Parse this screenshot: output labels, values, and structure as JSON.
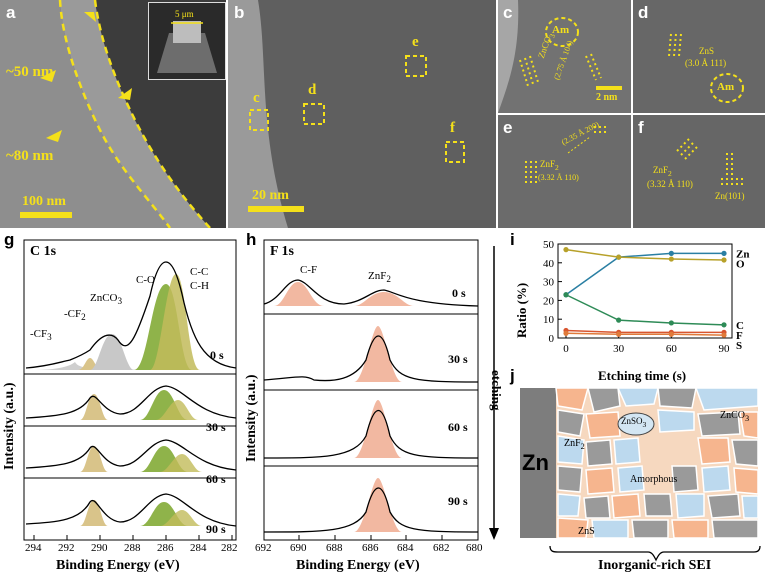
{
  "colors": {
    "yellow": "#f4e01a",
    "tem_dark": "#3a3a3a",
    "teal": "#2a7fa3",
    "olive": "#b7a12a",
    "orange_red": "#d8552f",
    "f_peak": "#f2b8a1"
  },
  "panel_a": {
    "label": "a",
    "annot_top": "~50 nm",
    "annot_bottom": "~80 nm",
    "inset_scale": "5 μm",
    "scalebar": "100 nm"
  },
  "panel_b": {
    "label": "b",
    "box_c": "c",
    "box_d": "d",
    "box_e": "e",
    "box_f": "f",
    "scalebar": "20 nm"
  },
  "panel_c": {
    "label": "c",
    "am": "Am",
    "znco3_1": "ZnCO",
    "znco3_2": "3",
    "lattice": "(2.75 Å 104)",
    "scalebar": "2 nm"
  },
  "panel_d": {
    "label": "d",
    "zns": "ZnS",
    "lattice": "(3.0 Å 111)",
    "am": "Am"
  },
  "panel_e": {
    "label": "e",
    "znf2": "ZnF",
    "lattice_a": "(3.32 Å 110)",
    "lattice_b": "(2.35 Å 200)"
  },
  "panel_f": {
    "label": "f",
    "znf2": "ZnF",
    "lattice": "(3.32 Å 110)",
    "zn": "Zn(101)"
  },
  "panel_g": {
    "label": "g",
    "title": "C 1s",
    "ylabel": "Intensity (a.u.)",
    "xlabel": "Binding Energy (eV)",
    "peaks": [
      "-CF",
      "-CF",
      "ZnCO",
      "C-O",
      "C-C",
      "C-H"
    ],
    "times": [
      "0 s",
      "30 s",
      "60 s",
      "90 s"
    ],
    "xticks": [
      "294",
      "292",
      "290",
      "288",
      "286",
      "284",
      "282"
    ]
  },
  "panel_h": {
    "label": "h",
    "title": "F 1s",
    "ylabel": "Intensity (a.u.)",
    "xlabel": "Binding Energy (eV)",
    "peaks": [
      "C-F",
      "ZnF"
    ],
    "times": [
      "0 s",
      "30 s",
      "60 s",
      "90 s"
    ],
    "etching": "etching",
    "xticks": [
      "692",
      "690",
      "688",
      "686",
      "684",
      "682",
      "680"
    ]
  },
  "panel_i": {
    "label": "i",
    "ylabel": "Ratio (%)",
    "xlabel": "Etching time (s)"
  },
  "chart_data": {
    "type": "line",
    "x": [
      0,
      30,
      60,
      90
    ],
    "xlabel": "Etching time (s)",
    "ylabel": "Ratio (%)",
    "ylim": [
      0,
      50
    ],
    "xticks": [
      0,
      30,
      60,
      90
    ],
    "yticks": [
      0,
      10,
      20,
      30,
      40,
      50
    ],
    "series": [
      {
        "name": "Zn",
        "values": [
          23,
          43,
          45,
          45
        ],
        "color": "#2a7fa3"
      },
      {
        "name": "O",
        "values": [
          47,
          43,
          42,
          41.5
        ],
        "color": "#b7a12a"
      },
      {
        "name": "C",
        "values": [
          23,
          9.5,
          8,
          7
        ],
        "color": "#2e8b57"
      },
      {
        "name": "F",
        "values": [
          4,
          3,
          3,
          3
        ],
        "color": "#d8552f"
      },
      {
        "name": "S",
        "values": [
          2.5,
          2,
          2,
          1.5
        ],
        "color": "#e07a3a"
      }
    ]
  },
  "panel_j": {
    "label": "j",
    "zn": "Zn",
    "znso3": "ZnSO",
    "znco3": "ZnCO",
    "znf2": "ZnF",
    "amorphous": "Amorphous",
    "zns": "ZnS",
    "sei": "Inorganic-rich SEI"
  }
}
